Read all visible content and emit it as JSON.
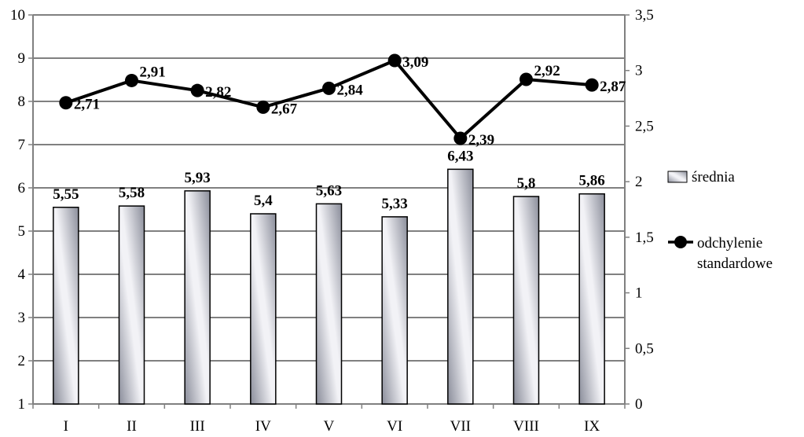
{
  "chart_data": {
    "type": "bar",
    "title": "",
    "xlabel": "",
    "ylabel": "",
    "categories": [
      "I",
      "II",
      "III",
      "IV",
      "V",
      "VI",
      "VII",
      "VIII",
      "IX"
    ],
    "y_left": {
      "min": 1,
      "max": 10,
      "step": 1,
      "tick_labels": [
        "1",
        "2",
        "3",
        "4",
        "5",
        "6",
        "7",
        "8",
        "9",
        "10"
      ]
    },
    "y_right": {
      "min": 0,
      "max": 3.5,
      "step": 0.5,
      "tick_labels": [
        "0",
        "0,5",
        "1",
        "1,5",
        "2",
        "2,5",
        "3",
        "3,5"
      ]
    },
    "grid": true,
    "legend_position": "right",
    "series": [
      {
        "name": "średnia",
        "type": "bar",
        "axis": "left",
        "values": [
          5.55,
          5.58,
          5.93,
          5.4,
          5.63,
          5.33,
          6.43,
          5.8,
          5.86
        ],
        "labels": [
          "5,55",
          "5,58",
          "5,93",
          "5,4",
          "5,63",
          "5,33",
          "6,43",
          "5,8",
          "5,86"
        ]
      },
      {
        "name": "odchylenie standardowe",
        "name_lines": [
          "odchylenie",
          "standardowe"
        ],
        "type": "line",
        "axis": "right",
        "values": [
          2.71,
          2.91,
          2.82,
          2.67,
          2.84,
          3.09,
          2.39,
          2.92,
          2.87
        ],
        "labels": [
          "2,71",
          "2,91",
          "2,82",
          "2,67",
          "2,84",
          "3,09",
          "2,39",
          "2,92",
          "2,87"
        ]
      }
    ],
    "colors": {
      "bar_dark": "#8a8d9a",
      "bar_light": "#f2f2f6",
      "line": "#000000",
      "grid": "#808080"
    }
  }
}
